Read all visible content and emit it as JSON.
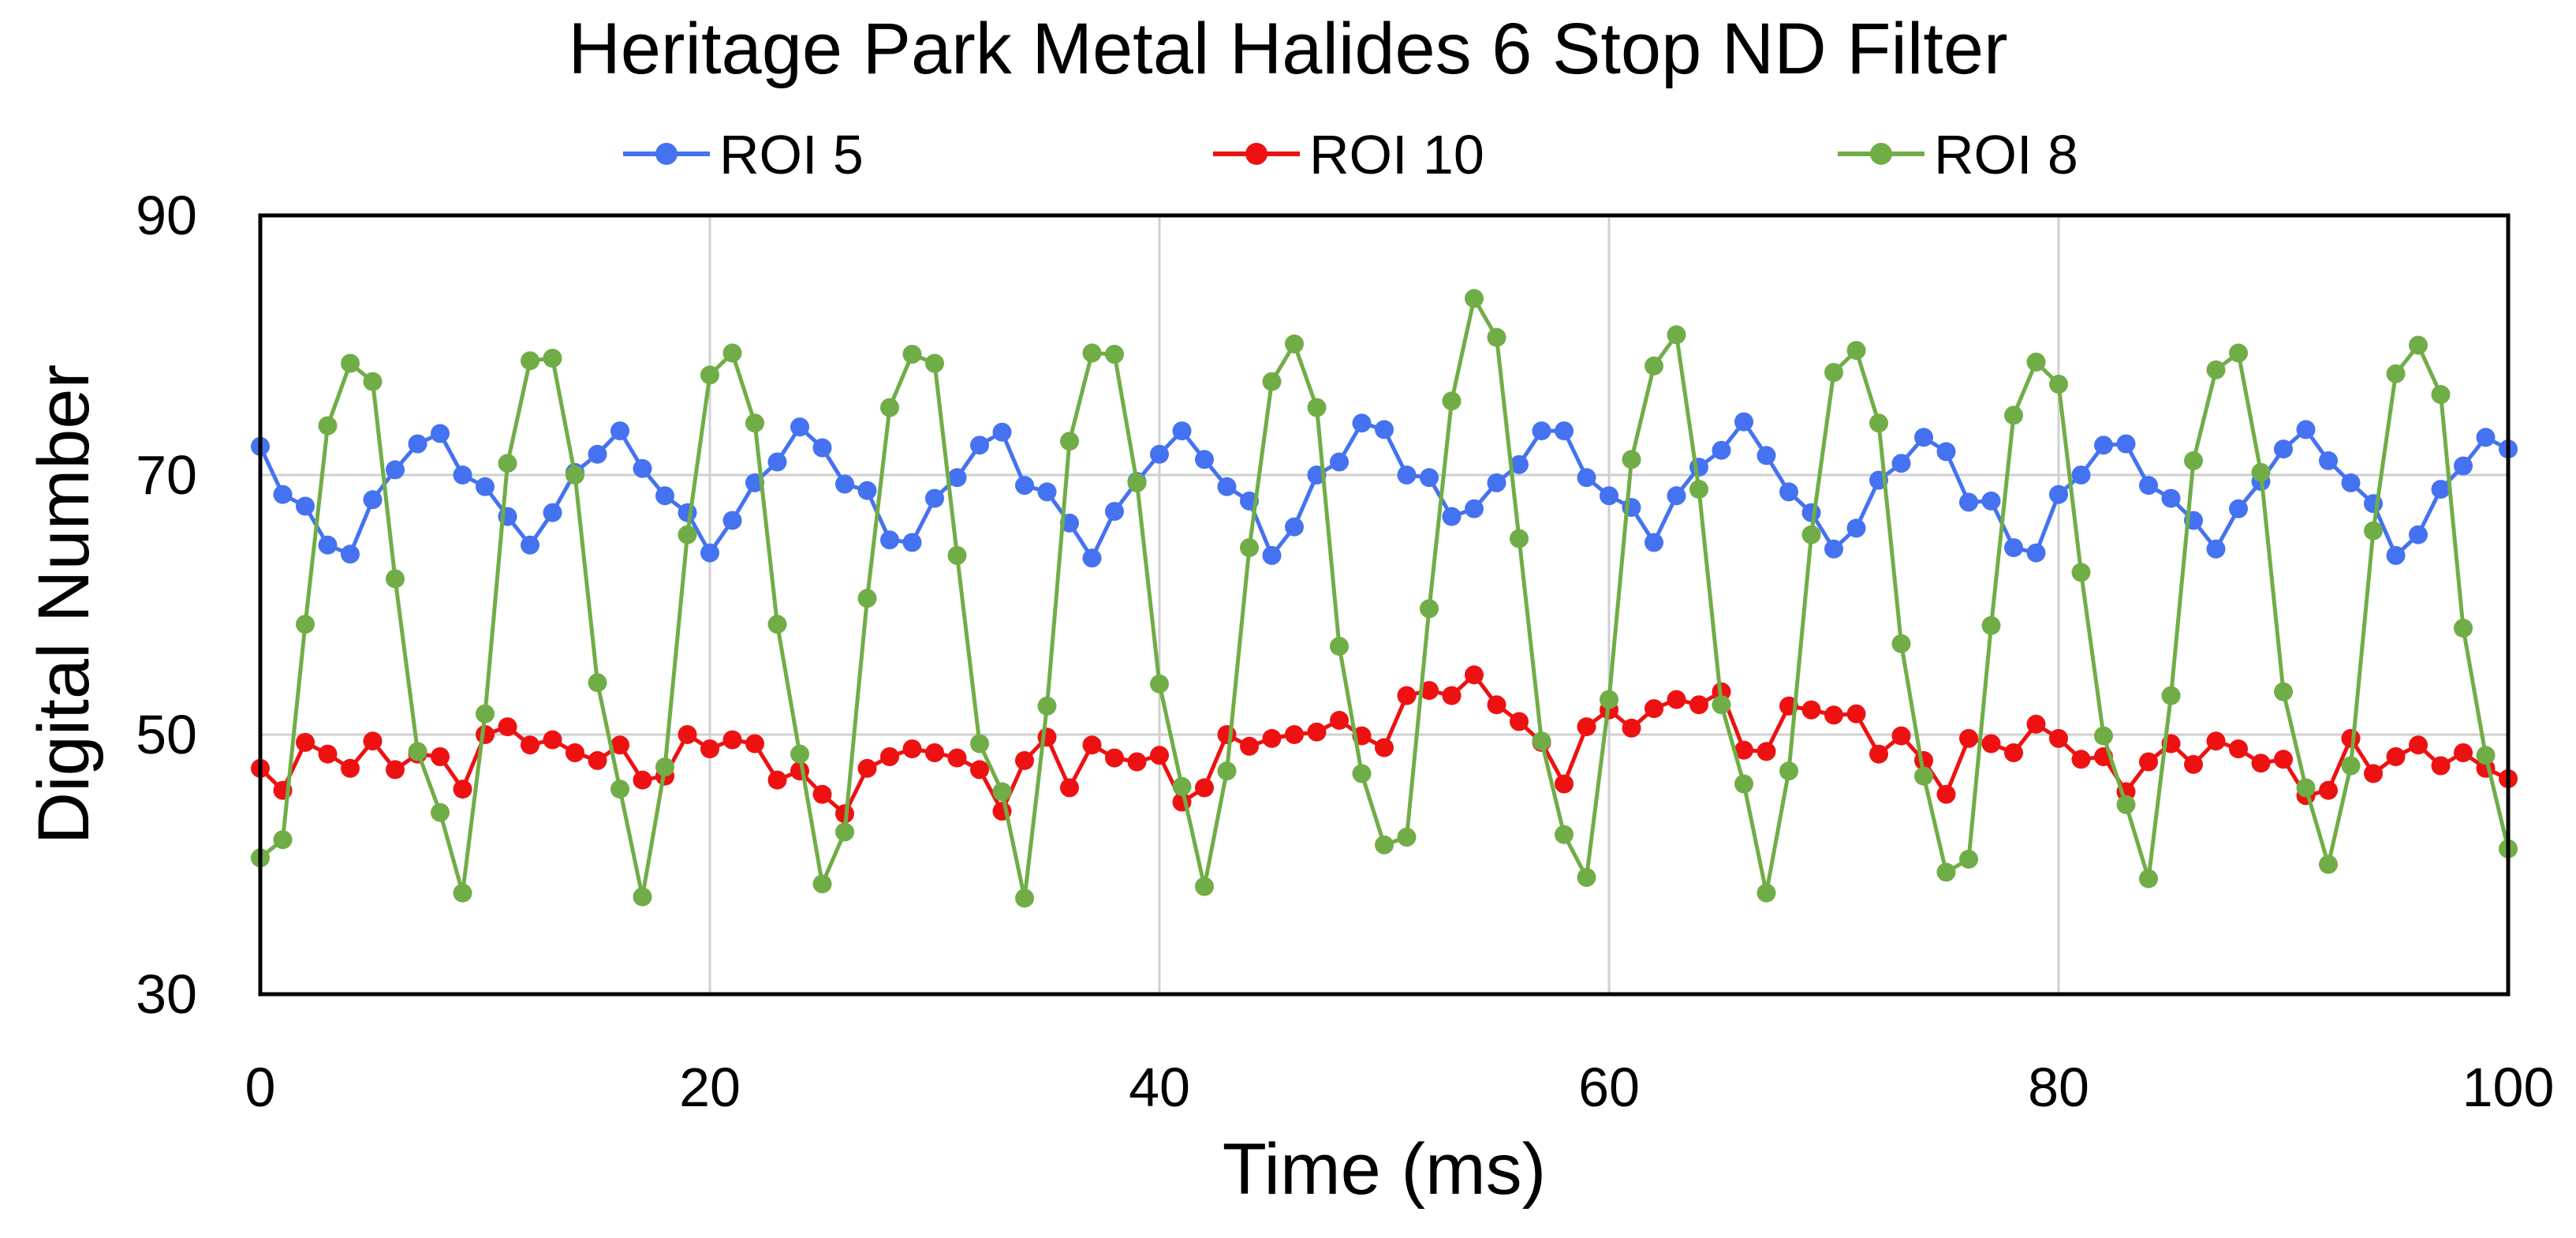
{
  "chart_data": {
    "type": "line",
    "title": "Heritage Park Metal Halides 6 Stop ND Filter",
    "xlabel": "Time (ms)",
    "ylabel": "Digital Number",
    "xlim": [
      0,
      100
    ],
    "ylim": [
      30,
      90
    ],
    "xticks": [
      0,
      20,
      40,
      60,
      80,
      100
    ],
    "yticks": [
      30,
      50,
      70,
      90
    ],
    "grid": true,
    "legend_position": "top",
    "x": [
      0,
      1,
      2,
      3,
      4,
      5,
      6,
      7,
      8,
      9,
      10,
      11,
      12,
      13,
      14,
      15,
      16,
      17,
      18,
      19,
      20,
      21,
      22,
      23,
      24,
      25,
      26,
      27,
      28,
      29,
      30,
      31,
      32,
      33,
      34,
      35,
      36,
      37,
      38,
      39,
      40,
      41,
      42,
      43,
      44,
      45,
      46,
      47,
      48,
      49,
      50,
      51,
      52,
      53,
      54,
      55,
      56,
      57,
      58,
      59,
      60,
      61,
      62,
      63,
      64,
      65,
      66,
      67,
      68,
      69,
      70,
      71,
      72,
      73,
      74,
      75,
      76,
      77,
      78,
      79,
      80,
      81,
      82,
      83,
      84,
      85,
      86,
      87,
      88,
      89,
      90,
      91,
      92,
      93,
      94,
      95,
      96,
      97,
      98,
      99,
      100
    ],
    "series": [
      {
        "name": "ROI 5",
        "color": "#4472F0",
        "values": [
          72.2,
          68.5,
          67.6,
          64.6,
          63.9,
          68.1,
          70.4,
          72.4,
          73.2,
          70.0,
          69.1,
          66.8,
          64.6,
          67.1,
          70.2,
          71.6,
          73.4,
          70.5,
          68.4,
          67.1,
          64.0,
          66.5,
          69.4,
          71.0,
          73.7,
          72.1,
          69.3,
          68.8,
          65.0,
          64.8,
          68.2,
          69.8,
          72.3,
          73.3,
          69.2,
          68.7,
          66.3,
          63.6,
          67.2,
          69.5,
          71.6,
          73.4,
          71.2,
          69.1,
          68.0,
          63.8,
          66.0,
          70.0,
          71.0,
          74.0,
          73.5,
          70.0,
          69.8,
          66.8,
          67.4,
          69.4,
          70.8,
          73.4,
          73.4,
          69.8,
          68.4,
          67.5,
          64.8,
          68.4,
          70.6,
          71.9,
          74.1,
          71.5,
          68.7,
          67.1,
          64.3,
          65.9,
          69.6,
          70.9,
          72.9,
          71.8,
          67.9,
          68.0,
          64.4,
          64.0,
          68.5,
          70.0,
          72.3,
          72.4,
          69.2,
          68.2,
          66.5,
          64.3,
          67.4,
          69.5,
          72.0,
          73.5,
          71.1,
          69.4,
          67.8,
          63.8,
          65.4,
          68.9,
          70.7,
          72.9,
          72.0
        ]
      },
      {
        "name": "ROI 10",
        "color": "#EE1111",
        "values": [
          47.4,
          45.7,
          49.4,
          48.5,
          47.4,
          49.5,
          47.3,
          48.5,
          48.3,
          45.8,
          50.0,
          50.6,
          49.2,
          49.6,
          48.6,
          48.0,
          49.2,
          46.5,
          46.8,
          50.0,
          48.9,
          49.6,
          49.3,
          46.5,
          47.2,
          45.4,
          43.9,
          47.4,
          48.3,
          48.9,
          48.6,
          48.2,
          47.3,
          44.1,
          48.0,
          49.8,
          45.9,
          49.2,
          48.2,
          47.9,
          48.4,
          44.8,
          45.9,
          50.0,
          49.1,
          49.7,
          50.0,
          50.2,
          51.1,
          49.9,
          49.0,
          53.0,
          53.4,
          53.0,
          54.6,
          52.3,
          51.0,
          49.4,
          46.2,
          50.6,
          51.9,
          50.5,
          52.0,
          52.7,
          52.3,
          53.3,
          48.8,
          48.7,
          52.2,
          51.9,
          51.5,
          51.6,
          48.5,
          49.9,
          48.0,
          45.4,
          49.7,
          49.3,
          48.6,
          50.8,
          49.7,
          48.1,
          48.3,
          45.6,
          47.9,
          49.3,
          47.7,
          49.5,
          48.9,
          47.8,
          48.1,
          45.3,
          45.7,
          49.7,
          47.0,
          48.3,
          49.2,
          47.6,
          48.6,
          47.4,
          46.6
        ]
      },
      {
        "name": "ROI 8",
        "color": "#70AD47",
        "values": [
          40.5,
          41.9,
          58.5,
          73.8,
          78.6,
          77.2,
          62.0,
          48.7,
          44.0,
          37.8,
          51.6,
          70.9,
          78.8,
          79.0,
          70.0,
          54.0,
          45.8,
          37.5,
          47.5,
          65.4,
          77.7,
          79.4,
          74.0,
          58.5,
          48.5,
          38.5,
          42.5,
          60.5,
          75.2,
          79.3,
          78.6,
          63.8,
          49.3,
          45.6,
          37.4,
          52.2,
          72.6,
          79.4,
          79.3,
          69.4,
          53.9,
          46.0,
          38.3,
          47.2,
          64.4,
          77.2,
          80.1,
          75.2,
          56.8,
          47.0,
          41.5,
          42.1,
          59.7,
          75.7,
          83.6,
          80.6,
          65.1,
          49.5,
          42.3,
          39.0,
          52.7,
          71.2,
          78.4,
          80.8,
          68.9,
          52.3,
          46.2,
          37.8,
          47.2,
          65.4,
          77.9,
          79.6,
          74.0,
          57.0,
          46.8,
          39.4,
          40.4,
          58.4,
          74.6,
          78.7,
          77.0,
          62.5,
          49.9,
          44.6,
          38.9,
          53.0,
          71.1,
          78.1,
          79.4,
          70.2,
          53.3,
          45.9,
          40.0,
          47.6,
          65.7,
          77.8,
          80.0,
          76.2,
          58.2,
          48.4,
          41.2
        ]
      }
    ]
  }
}
